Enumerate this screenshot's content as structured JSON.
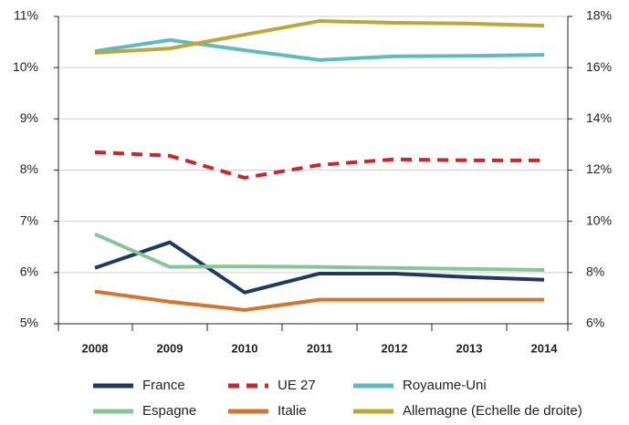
{
  "chart_data": {
    "type": "line",
    "categories": [
      "2008",
      "2009",
      "2010",
      "2011",
      "2012",
      "2013",
      "2014"
    ],
    "series": [
      {
        "name": "France",
        "color": "#1f3864",
        "values": [
          6.09,
          6.59,
          5.61,
          5.98,
          5.98,
          5.91,
          5.86
        ]
      },
      {
        "name": "UE 27",
        "color": "#d2232a",
        "dashed": true,
        "values": [
          8.35,
          8.28,
          7.85,
          8.1,
          8.21,
          8.19,
          8.19
        ]
      },
      {
        "name": "Royaume-Uni",
        "color": "#5bbcc4",
        "values": [
          10.32,
          10.54,
          10.34,
          10.15,
          10.22,
          10.23,
          10.25
        ]
      },
      {
        "name": "Espagne",
        "color": "#86c796",
        "values": [
          6.75,
          6.11,
          6.12,
          6.11,
          6.09,
          6.07,
          6.05
        ]
      },
      {
        "name": "Italie",
        "color": "#d9732b",
        "values": [
          5.63,
          5.43,
          5.27,
          5.47,
          5.47,
          5.47,
          5.47
        ]
      },
      {
        "name": "Allemagne (Echelle de droite)",
        "color": "#bfa736",
        "axis": "y2",
        "values": [
          16.58,
          16.75,
          17.29,
          17.82,
          17.75,
          17.72,
          17.64
        ]
      }
    ],
    "ylim": [
      5,
      11
    ],
    "yticks": [
      {
        "value": 5,
        "label": "5%"
      },
      {
        "value": 6,
        "label": "6%"
      },
      {
        "value": 7,
        "label": "7%"
      },
      {
        "value": 8,
        "label": "8%"
      },
      {
        "value": 9,
        "label": "9%"
      },
      {
        "value": 10,
        "label": "10%"
      },
      {
        "value": 11,
        "label": "11%"
      }
    ],
    "y2lim": [
      6,
      18
    ],
    "y2ticks": [
      {
        "value": 6,
        "label": "6%"
      },
      {
        "value": 8,
        "label": "8%"
      },
      {
        "value": 10,
        "label": "10%"
      },
      {
        "value": 12,
        "label": "12%"
      },
      {
        "value": 14,
        "label": "14%"
      },
      {
        "value": 16,
        "label": "16%"
      },
      {
        "value": 18,
        "label": "18%"
      }
    ],
    "grid": true,
    "legend": "bottom"
  }
}
